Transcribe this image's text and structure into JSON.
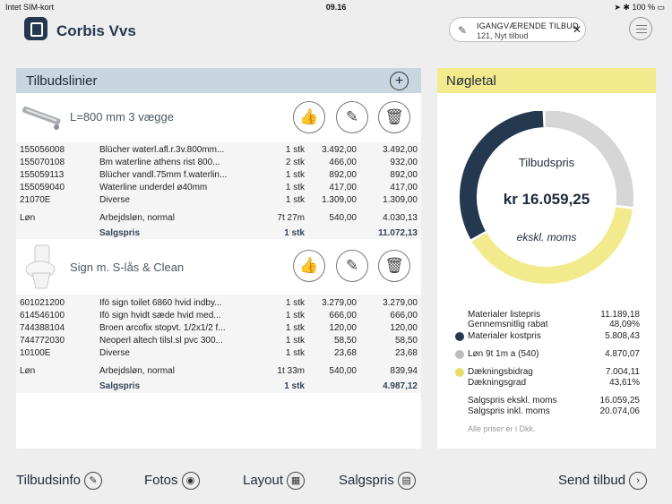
{
  "status": {
    "carrier": "Intet SIM-kort",
    "time": "09.16",
    "battery": "100 %"
  },
  "app": {
    "name": "Corbis Vvs"
  },
  "active_offer": {
    "title": "IGANGVÆRENDE TILBUD",
    "subtitle": "121, Nyt tilbud"
  },
  "lines_panel": {
    "title": "Tilbudslinier",
    "products": [
      {
        "name": "L=800 mm 3 vægge",
        "items": [
          {
            "code": "155056008",
            "desc": "Blücher waterl.afl.r.3v.800mm...",
            "qty": "1 stk",
            "price": "3.492,00",
            "total": "3.492,00"
          },
          {
            "code": "155070108",
            "desc": "Bm waterline athens rist 800...",
            "qty": "2 stk",
            "price": "466,00",
            "total": "932,00"
          },
          {
            "code": "155059113",
            "desc": "Blücher vandl.75mm f.waterlin...",
            "qty": "1 stk",
            "price": "892,00",
            "total": "892,00"
          },
          {
            "code": "155059040",
            "desc": "Waterline underdel ø40mm",
            "qty": "1 stk",
            "price": "417,00",
            "total": "417,00"
          },
          {
            "code": "21070E",
            "desc": "Diverse",
            "qty": "1 stk",
            "price": "1.309,00",
            "total": "1.309,00"
          }
        ],
        "labor": {
          "label": "Løn",
          "desc": "Arbejdsløn, normal",
          "qty": "7t 27m",
          "price": "540,00",
          "total": "4.030,13"
        },
        "sale": {
          "label": "Salgspris",
          "qty": "1 stk",
          "total": "11.072,13"
        }
      },
      {
        "name": "Sign m. S-lås & Clean",
        "items": [
          {
            "code": "601021200",
            "desc": "Ifö sign toilet 6860 hvid indby...",
            "qty": "1 stk",
            "price": "3.279,00",
            "total": "3.279,00"
          },
          {
            "code": "614546100",
            "desc": "Ifö sign hvidt sæde hvid med...",
            "qty": "1 stk",
            "price": "666,00",
            "total": "666,00"
          },
          {
            "code": "744388104",
            "desc": "Broen arcofix stopvt. 1/2x1/2 f...",
            "qty": "1 stk",
            "price": "120,00",
            "total": "120,00"
          },
          {
            "code": "744772030",
            "desc": "Neoperl altech tilsl.sl pvc 300...",
            "qty": "1 stk",
            "price": "58,50",
            "total": "58,50"
          },
          {
            "code": "10100E",
            "desc": "Diverse",
            "qty": "1 stk",
            "price": "23,68",
            "total": "23,68"
          }
        ],
        "labor": {
          "label": "Løn",
          "desc": "Arbejdsløn, normal",
          "qty": "1t 33m",
          "price": "540,00",
          "total": "839,94"
        },
        "sale": {
          "label": "Salgspris",
          "qty": "1 stk",
          "total": "4.987,12"
        }
      }
    ]
  },
  "kpi": {
    "title": "Nøgletal",
    "donut": {
      "label": "Tilbudspris",
      "value": "kr 16.059,25",
      "note": "ekskl. moms"
    },
    "chart_data": {
      "type": "pie",
      "series": [
        {
          "name": "Materialer kostpris",
          "value": 5808.43,
          "color": "#24384f"
        },
        {
          "name": "Løn 9t 1m a (540)",
          "value": 4870.07,
          "color": "#d6d6d6"
        },
        {
          "name": "Dækningsbidrag",
          "value": 7004.11,
          "color": "#f2ea8c"
        }
      ]
    },
    "rows": [
      {
        "label": "Materialer listepris",
        "value": "11.189,18"
      },
      {
        "label": "Gennemsnitlig rabat",
        "value": "48,09%"
      },
      {
        "label": "Materialer kostpris",
        "value": "5.808,43",
        "dot": "#24384f"
      },
      {
        "label": "Løn 9t 1m a (540)",
        "value": "4.870,07",
        "dot": "#bdbdbd"
      },
      {
        "label": "Dækningsbidrag",
        "value": "7.004,11",
        "dot": "#e8de6a"
      },
      {
        "label": "Dækningsgrad",
        "value": "43,61%"
      },
      {
        "label": "Salgspris ekskl. moms",
        "value": "16.059,25"
      },
      {
        "label": "Salgspris inkl. moms",
        "value": "20.074,06"
      }
    ],
    "note": "Alle priser er i Dkk."
  },
  "bottom_nav": {
    "info": "Tilbudsinfo",
    "photos": "Fotos",
    "layout": "Layout",
    "price": "Salgspris",
    "send": "Send tilbud"
  }
}
